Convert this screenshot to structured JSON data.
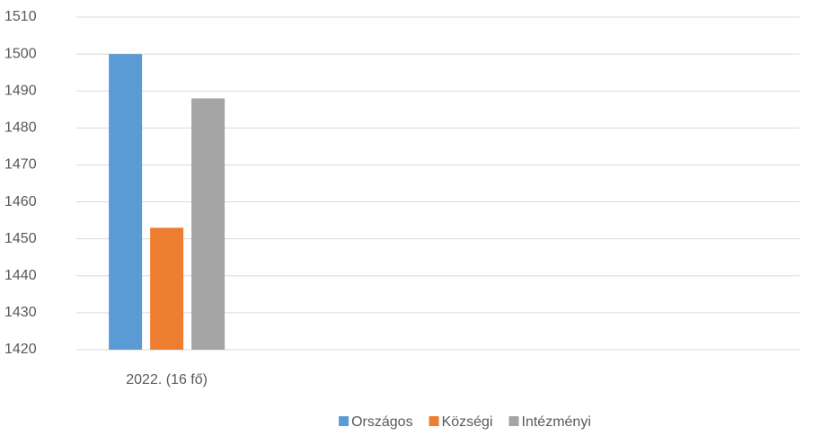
{
  "chart_data": {
    "type": "bar",
    "categories": [
      "2022. (16 fő)",
      null,
      null,
      null
    ],
    "series": [
      {
        "name": "Országos",
        "color": "#5b9bd5",
        "values": [
          1500,
          null,
          null,
          null
        ]
      },
      {
        "name": "Községi",
        "color": "#ed7d31",
        "values": [
          1453,
          null,
          null,
          null
        ]
      },
      {
        "name": "Intézményi",
        "color": "#a5a5a5",
        "values": [
          1488,
          null,
          null,
          null
        ]
      }
    ],
    "ylim": [
      1420,
      1510
    ],
    "yticks": [
      1420,
      1430,
      1440,
      1450,
      1460,
      1470,
      1480,
      1490,
      1500,
      1510
    ],
    "grid": true,
    "legend": "bottom"
  }
}
